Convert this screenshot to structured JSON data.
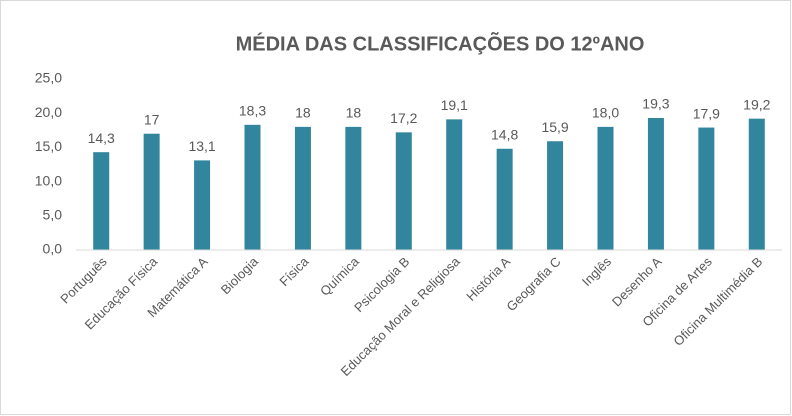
{
  "chart_data": {
    "type": "bar",
    "title": "MÉDIA DAS CLASSIFICAÇÕES DO 12ºANO",
    "categories": [
      "Português",
      "Educação Física",
      "Matemática A",
      "Biologia",
      "Física",
      "Química",
      "Psicologia B",
      "Educação Moral e Religiosa",
      "História A",
      "Geografia C",
      "Inglês",
      "Desenho A",
      "Oficina de Artes",
      "Oficina Multimédia B"
    ],
    "values": [
      14.3,
      17,
      13.1,
      18.3,
      18,
      18,
      17.2,
      19.1,
      14.8,
      15.9,
      18,
      19.3,
      17.9,
      19.2
    ],
    "value_labels": [
      "14,3",
      "17",
      "13,1",
      "18,3",
      "18",
      "18",
      "17,2",
      "19,1",
      "14,8",
      "15,9",
      "18,0",
      "19,3",
      "17,9",
      "19,2"
    ],
    "color": "#31859c",
    "ylim": [
      0,
      25
    ],
    "yticks": [
      {
        "value": 0,
        "label": "0,0"
      },
      {
        "value": 5,
        "label": "5,0"
      },
      {
        "value": 10,
        "label": "10,0"
      },
      {
        "value": 15,
        "label": "15,0"
      },
      {
        "value": 20,
        "label": "20,0"
      },
      {
        "value": 25,
        "label": "25,0"
      }
    ],
    "grid": false
  }
}
